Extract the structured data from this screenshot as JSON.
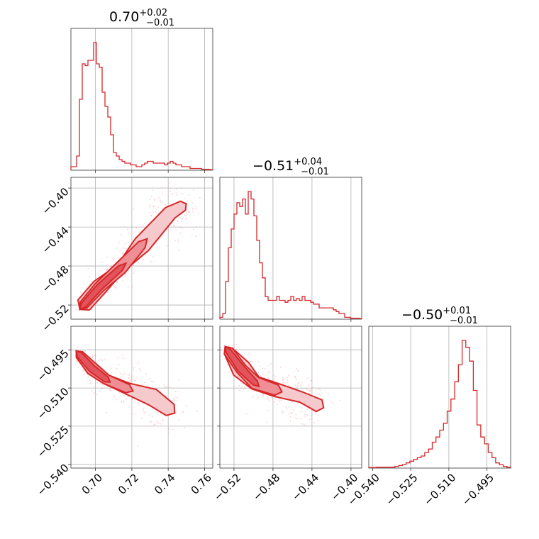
{
  "chart_data": {
    "type": "corner",
    "color": "#d62728",
    "parameters": [
      {
        "title_value": "0.70",
        "title_plus": "+0.02",
        "title_minus": "−0.01",
        "range": [
          0.6865,
          0.7645
        ],
        "ticks": [
          0.7,
          0.72,
          0.74,
          0.76
        ],
        "tick_labels": [
          "0.70",
          "0.72",
          "0.74",
          "0.76"
        ]
      },
      {
        "title_value": "−0.51",
        "title_plus": "+0.04",
        "title_minus": "−0.01",
        "range": [
          -0.5345,
          -0.389
        ],
        "ticks": [
          -0.52,
          -0.48,
          -0.44,
          -0.4
        ],
        "tick_labels": [
          "−0.52",
          "−0.48",
          "−0.44",
          "−0.40"
        ]
      },
      {
        "title_value": "−0.50",
        "title_plus": "+0.01",
        "title_minus": "−0.01",
        "range": [
          -0.5415,
          -0.4857
        ],
        "ticks": [
          -0.54,
          -0.525,
          -0.51,
          -0.495
        ],
        "tick_labels": [
          "−0.540",
          "−0.525",
          "−0.510",
          "−0.495"
        ]
      }
    ],
    "hist1d": [
      {
        "param": 0,
        "bins": [
          0.6865,
          0.7645
        ],
        "counts": [
          2,
          2,
          8,
          40,
          60,
          59,
          62,
          62,
          72,
          60,
          58,
          44,
          36,
          30,
          20,
          10,
          8,
          6,
          5,
          4,
          4,
          3,
          3,
          2,
          2,
          3,
          4,
          5,
          5,
          4,
          4,
          4,
          4,
          3,
          4,
          5,
          4,
          3,
          3,
          2,
          2,
          2,
          1,
          1,
          1,
          1,
          0.5,
          0.5,
          0.5,
          0.3
        ]
      },
      {
        "param": 1,
        "bins": [
          -0.5345,
          -0.389
        ],
        "counts": [
          1,
          3,
          20,
          38,
          48,
          56,
          62,
          60,
          64,
          56,
          68,
          64,
          55,
          42,
          30,
          22,
          12,
          10,
          10,
          10,
          12,
          10,
          10,
          9,
          10,
          12,
          10,
          11,
          10,
          12,
          10,
          10,
          9,
          8,
          8,
          6,
          6,
          6,
          6,
          6,
          5,
          4,
          3,
          3,
          1,
          1,
          0.5,
          0.5,
          0.5,
          0.3
        ]
      },
      {
        "param": 2,
        "bins": [
          -0.5415,
          -0.4857
        ],
        "counts": [
          0.3,
          0.3,
          0.5,
          0.5,
          0.5,
          0.5,
          0.5,
          1,
          1.5,
          2,
          3,
          4,
          5,
          6,
          7,
          9,
          11,
          15,
          18,
          22,
          26,
          33,
          40,
          50,
          60,
          74,
          70,
          62,
          45,
          25,
          18,
          14,
          9,
          6,
          3,
          2,
          1,
          0.5
        ]
      }
    ],
    "pairs": [
      [
        1,
        0
      ],
      [
        2,
        0
      ],
      [
        2,
        1
      ]
    ]
  }
}
